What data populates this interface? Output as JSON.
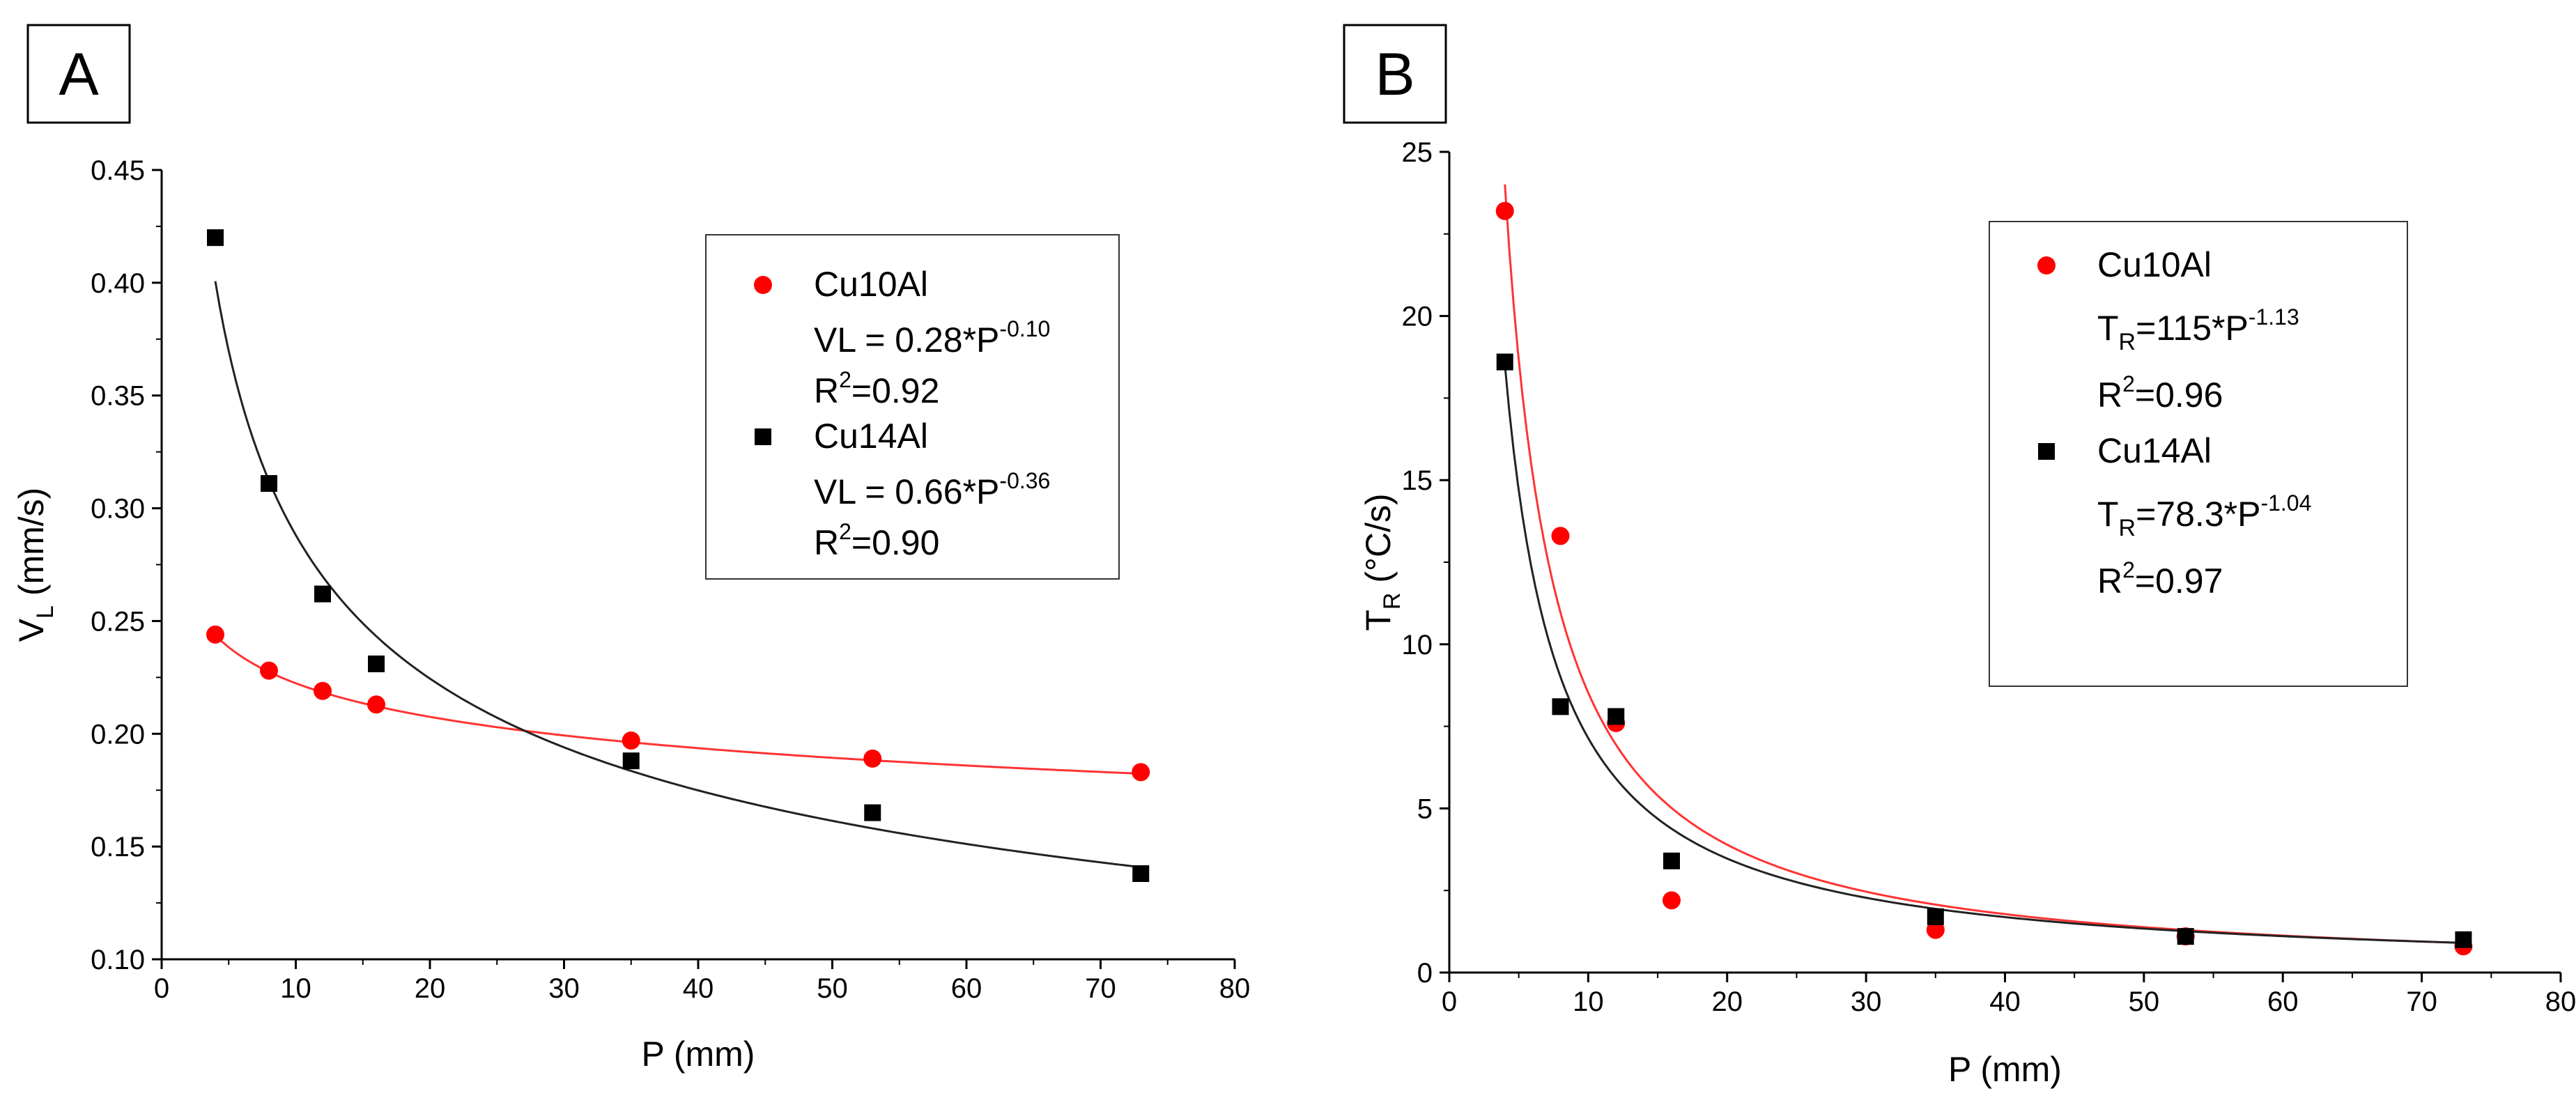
{
  "chart_data": [
    {
      "type": "scatter",
      "panel_label": "A",
      "xlabel": "P (mm)",
      "ylabel": {
        "main": "V",
        "sub": "L",
        "rest": " (mm/s)"
      },
      "xlim": [
        0,
        80
      ],
      "ylim": [
        0.1,
        0.45
      ],
      "xticks": [
        0,
        10,
        20,
        30,
        40,
        50,
        60,
        70,
        80
      ],
      "yticks": [
        0.1,
        0.15,
        0.2,
        0.25,
        0.3,
        0.35,
        0.4,
        0.45
      ],
      "ytick_decimals": 2,
      "grid": false,
      "legend_position": "top-right",
      "series": [
        {
          "name": "Cu10Al",
          "marker": "circle",
          "color": "#ff0000",
          "line_color": "#ff3333",
          "x": [
            4,
            8,
            12,
            16,
            35,
            53,
            73
          ],
          "y": [
            0.244,
            0.228,
            0.219,
            0.213,
            0.197,
            0.189,
            0.183
          ],
          "fit": {
            "a": 0.28,
            "b": -0.1
          },
          "legend_lines": [
            {
              "base": "VL = 0.28*P",
              "sup": "-0.10"
            },
            {
              "base": "R",
              "sup": "2",
              "tail": "=0.92"
            }
          ]
        },
        {
          "name": "Cu14Al",
          "marker": "square",
          "color": "#000000",
          "line_color": "#222222",
          "x": [
            4,
            8,
            12,
            16,
            35,
            53,
            73
          ],
          "y": [
            0.42,
            0.311,
            0.262,
            0.231,
            0.188,
            0.165,
            0.138
          ],
          "fit": {
            "a": 0.66,
            "b": -0.36
          },
          "legend_lines": [
            {
              "base": "VL = 0.66*P",
              "sup": "-0.36"
            },
            {
              "base": "R",
              "sup": "2",
              "tail": "=0.90"
            }
          ]
        }
      ]
    },
    {
      "type": "scatter",
      "panel_label": "B",
      "xlabel": "P (mm)",
      "ylabel": {
        "main": "T",
        "sub": "R",
        "rest": " (°C/s)"
      },
      "xlim": [
        0,
        80
      ],
      "ylim": [
        0,
        25
      ],
      "xticks": [
        0,
        10,
        20,
        30,
        40,
        50,
        60,
        70,
        80
      ],
      "yticks": [
        0,
        5,
        10,
        15,
        20,
        25
      ],
      "ytick_decimals": 0,
      "grid": false,
      "legend_position": "top-right",
      "series": [
        {
          "name": "Cu10Al",
          "marker": "circle",
          "color": "#ff0000",
          "line_color": "#ff3333",
          "x": [
            4,
            8,
            12,
            16,
            35,
            53,
            73
          ],
          "y": [
            23.2,
            13.3,
            7.6,
            2.2,
            1.3,
            1.1,
            0.8
          ],
          "fit": {
            "a": 115,
            "b": -1.13
          },
          "legend_lines": [
            {
              "base": "T",
              "sub": "R",
              "mid": "=115*P",
              "sup": "-1.13"
            },
            {
              "base": "R",
              "sup": "2",
              "tail": "=0.96"
            }
          ]
        },
        {
          "name": "Cu14Al",
          "marker": "square",
          "color": "#000000",
          "line_color": "#222222",
          "x": [
            4,
            8,
            12,
            16,
            35,
            53,
            73
          ],
          "y": [
            18.6,
            8.1,
            7.8,
            3.4,
            1.7,
            1.1,
            1.0
          ],
          "fit": {
            "a": 78.3,
            "b": -1.04
          },
          "legend_lines": [
            {
              "base": "T",
              "sub": "R",
              "mid": "=78.3*P",
              "sup": "-1.04"
            },
            {
              "base": "R",
              "sup": "2",
              "tail": "=0.97"
            }
          ]
        }
      ]
    }
  ]
}
